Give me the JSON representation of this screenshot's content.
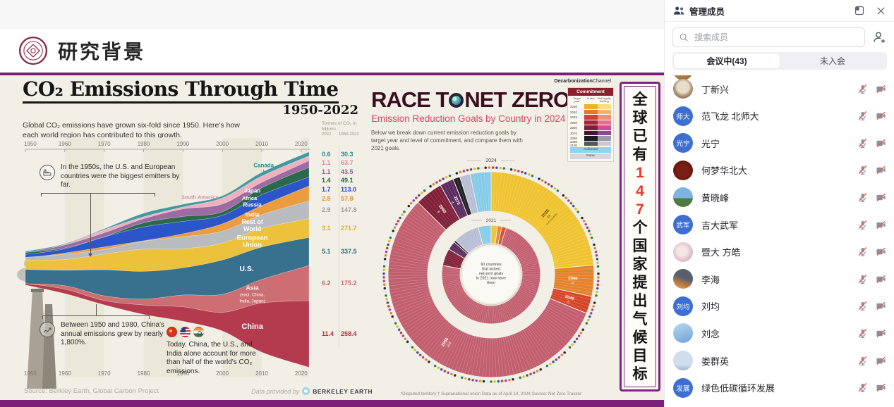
{
  "slide": {
    "header": {
      "title": "研究背景",
      "logo": "nankai-university-seal"
    },
    "banner": {
      "prefix": "全球已有",
      "number": "147",
      "suffix": "个国家提出气候目标"
    }
  },
  "panel": {
    "title": "管理成员",
    "search": {
      "placeholder": "搜索成员"
    },
    "tabs": [
      {
        "label": "会议中(43)",
        "active": true
      },
      {
        "label": "未入会",
        "active": false
      }
    ],
    "participants": [
      {
        "name": "丁新兴",
        "avatar_type": "photo",
        "avatar_style": "photo-a",
        "mic": "muted",
        "camera": "off"
      },
      {
        "name": "范飞龙 北师大",
        "avatar_type": "text",
        "avatar_text": "师大",
        "mic": "muted",
        "camera": "off"
      },
      {
        "name": "光宁",
        "avatar_type": "text",
        "avatar_text": "光宁",
        "mic": "muted",
        "camera": "off"
      },
      {
        "name": "何梦华北大",
        "avatar_type": "photo",
        "avatar_style": "photo-b",
        "mic": "muted",
        "camera": "off"
      },
      {
        "name": "黄晓峰",
        "avatar_type": "photo",
        "avatar_style": "photo-c",
        "mic": "muted",
        "camera": "off"
      },
      {
        "name": "吉大武军",
        "avatar_type": "text",
        "avatar_text": "武军",
        "mic": "muted",
        "camera": "off"
      },
      {
        "name": "暨大 方皓",
        "avatar_type": "photo",
        "avatar_style": "photo-d",
        "mic": "muted",
        "camera": "off"
      },
      {
        "name": "李海",
        "avatar_type": "photo",
        "avatar_style": "photo-e",
        "mic": "muted",
        "camera": "off"
      },
      {
        "name": "刘均",
        "avatar_type": "text",
        "avatar_text": "刘均",
        "mic": "muted",
        "camera": "off"
      },
      {
        "name": "刘念",
        "avatar_type": "photo",
        "avatar_style": "photo-f",
        "mic": "muted",
        "camera": "off"
      },
      {
        "name": "娄群英",
        "avatar_type": "photo",
        "avatar_style": "photo-g",
        "mic": "muted",
        "camera": "off"
      },
      {
        "name": "绿色低碳循环发展",
        "avatar_type": "text",
        "avatar_text": "发展",
        "mic": "muted",
        "camera": "off"
      }
    ]
  },
  "chart_data": [
    {
      "type": "area",
      "title": "CO₂ Emissions Through Time",
      "subtitle": "1950-2022",
      "description": "Global CO₂ emissions have grown six-fold since 1950. Here's how each world region has contributed to this growth.",
      "unit_label": "Tonnes of CO₂ in billions",
      "value_columns": [
        "2022",
        "1950-2022"
      ],
      "x": [
        1950,
        1960,
        1970,
        1980,
        1990,
        2000,
        2010,
        2022
      ],
      "x_ticks": [
        "1950",
        "1960",
        "1970",
        "1980",
        "1990",
        "2000",
        "2010",
        "2020"
      ],
      "series": [
        {
          "name": "Canada",
          "color": "#3f9aa0",
          "label_color": "#2f8793",
          "values": [
            0.15,
            0.2,
            0.3,
            0.45,
            0.45,
            0.55,
            0.55,
            0.6
          ],
          "y2022": "0.6",
          "total_1950_2022": "30.3"
        },
        {
          "name": "South America",
          "color": "#efb0bf",
          "label_color": "#dc8ba3",
          "values": [
            0.1,
            0.15,
            0.25,
            0.45,
            0.55,
            0.8,
            1.05,
            1.1
          ],
          "y2022": "1.1",
          "total_1950_2022": "63.7"
        },
        {
          "name": "Japan",
          "color": "#9c6ba1",
          "label_color": "#8e5f93",
          "values": [
            0.1,
            0.25,
            0.75,
            0.95,
            1.1,
            1.25,
            1.2,
            1.1
          ],
          "y2022": "1.1",
          "total_1950_2022": "43.5"
        },
        {
          "name": "Africa",
          "color": "#2a6a4a",
          "label_color": "#1f6b45",
          "values": [
            0.1,
            0.15,
            0.3,
            0.55,
            0.7,
            0.9,
            1.2,
            1.4
          ],
          "y2022": "1.4",
          "total_1950_2022": "49.1"
        },
        {
          "name": "Russia",
          "color": "#2c55c9",
          "label_color": "#2746c8",
          "values": [
            0.6,
            1.0,
            1.6,
            2.2,
            2.4,
            1.5,
            1.6,
            1.7
          ],
          "y2022": "1.7",
          "total_1950_2022": "113.0"
        },
        {
          "name": "India",
          "color": "#eb9c3e",
          "label_color": "#e2903b",
          "values": [
            0.1,
            0.15,
            0.2,
            0.3,
            0.6,
            1.0,
            1.7,
            2.8
          ],
          "y2022": "2.8",
          "total_1950_2022": "57.8"
        },
        {
          "name": "Rest of World",
          "color": "#b9bcbe",
          "label_color": "#9a9a9a",
          "values": [
            0.45,
            0.65,
            1.0,
            1.5,
            1.8,
            2.1,
            2.6,
            2.9
          ],
          "y2022": "2.9",
          "total_1950_2022": "147.8"
        },
        {
          "name": "European Union",
          "color": "#ecc23c",
          "label_color": "#dfa92c",
          "values": [
            1.4,
            2.0,
            2.9,
            3.6,
            3.3,
            3.2,
            3.1,
            3.1
          ],
          "y2022": "3.1",
          "total_1950_2022": "271.7"
        },
        {
          "name": "U.S.",
          "color": "#37718d",
          "label_color": "#2f6b80",
          "values": [
            2.55,
            2.9,
            4.3,
            4.75,
            5.0,
            5.85,
            5.4,
            5.1
          ],
          "y2022": "5.1",
          "total_1950_2022": "337.5"
        },
        {
          "name": "Asia (excl. China, India, Japan)",
          "color": "#cd6f72",
          "label_color": "#c96a6f",
          "values": [
            0.2,
            0.4,
            0.7,
            1.3,
            2.0,
            2.9,
            4.3,
            6.2
          ],
          "y2022": "6.2",
          "total_1950_2022": "175.2"
        },
        {
          "name": "China",
          "color": "#b43a4d",
          "label_color": "#b03040",
          "values": [
            0.08,
            0.78,
            0.9,
            1.5,
            2.4,
            3.4,
            8.5,
            11.4
          ],
          "y2022": "11.4",
          "total_1950_2022": "258.4"
        }
      ],
      "annotations": [
        "In the 1950s, the U.S. and European countries were the biggest emitters by far.",
        "Between 1950 and 1980, China's annual emissions grew by nearly 1,800%.",
        "Today, China, the U.S., and India alone account for more than half of the world's CO₂ emissions."
      ],
      "source": "Source: Berkley Earth, Global Carbon Project",
      "credit_label": "Data provided by",
      "credit_brand": "BERKELEY EARTH"
    },
    {
      "type": "pie",
      "brand_bold": "Decarbonization",
      "brand_light": "Channel",
      "title": "RACE TO NET ZERO",
      "subtitle": "Emission Reduction Goals by Country in 2024",
      "description": "Below we break down current emission reduction goals by target year and level of commitment, and compare them with 2021 goals.",
      "outer_ring_year": "2024",
      "inner_ring_year": "2021",
      "center_note": "60 countries that lacked net-zero goals in 2021 now have them",
      "legend": {
        "title": "Commitment",
        "columns": [
          "Target year",
          "In law",
          "Not legally binding"
        ],
        "rows": [
          {
            "year": "2030",
            "in_law": "#e9b621",
            "not_binding": "#f6e07e"
          },
          {
            "year": "2040",
            "in_law": "#e07b28",
            "not_binding": "#f3b26e"
          },
          {
            "year": "2045",
            "in_law": "#d04526",
            "not_binding": "#ef8f72"
          },
          {
            "year": "2050",
            "in_law": "#a82239",
            "not_binding": "#e86e8e"
          },
          {
            "year": "2060",
            "in_law": "#77203f",
            "not_binding": "#cf4f93"
          },
          {
            "year": "2070",
            "in_law": "#471634",
            "not_binding": "#8d4a90"
          },
          {
            "year": "2080",
            "in_law": "#1d1c22",
            "not_binding": "#9b9ba8"
          },
          {
            "year": "2090-2100",
            "in_law": "#55555e",
            "not_binding": "#c9c9d4"
          }
        ],
        "achieved": {
          "label": "Achieved",
          "color": "#8fd4f0"
        },
        "none": {
          "label": "None",
          "color": "#d6d6de"
        }
      },
      "segments_2024": [
        {
          "label": "2030",
          "countries": 43,
          "color": "#f0c330"
        },
        {
          "label": "2040",
          "countries": 9,
          "color": "#e5822c"
        },
        {
          "label": "2045",
          "countries": 5,
          "color": "#d64527"
        },
        {
          "label": "2050",
          "countries": 103,
          "color": "#c25e6e"
        },
        {
          "label": "2060",
          "countries": 8,
          "color": "#801f38"
        },
        {
          "label": "2070",
          "countries": 4,
          "color": "#5a2a5e"
        },
        {
          "label": "2080-2100",
          "countries": 2,
          "color": "#232028"
        },
        {
          "label": "None",
          "countries": 3,
          "color": "#b8bdd6"
        },
        {
          "label": "Achieved",
          "countries": 6,
          "color": "#85cbe8"
        }
      ],
      "segments_2021": [
        {
          "label": "2030",
          "countries": 3,
          "color": "#f0c330"
        },
        {
          "label": "2040",
          "countries": 2,
          "color": "#e5822c"
        },
        {
          "label": "2045",
          "countries": 2,
          "color": "#d64527"
        },
        {
          "label": "2050",
          "countries": 103,
          "color": "#c25e6e"
        },
        {
          "label": "2060",
          "countries": 8,
          "color": "#801f38"
        },
        {
          "label": "2070",
          "countries": 4,
          "color": "#5a2a5e"
        },
        {
          "label": "2080-2100",
          "countries": 1,
          "color": "#232028"
        },
        {
          "label": "None",
          "countries": 12,
          "color": "#b8bdd6"
        },
        {
          "label": "Achieved",
          "countries": 6,
          "color": "#85cbe8"
        }
      ],
      "footnote": "*Disputed territory    † Supranational union    Data as of April 14, 2024    Source: Net Zero Tracker"
    }
  ]
}
